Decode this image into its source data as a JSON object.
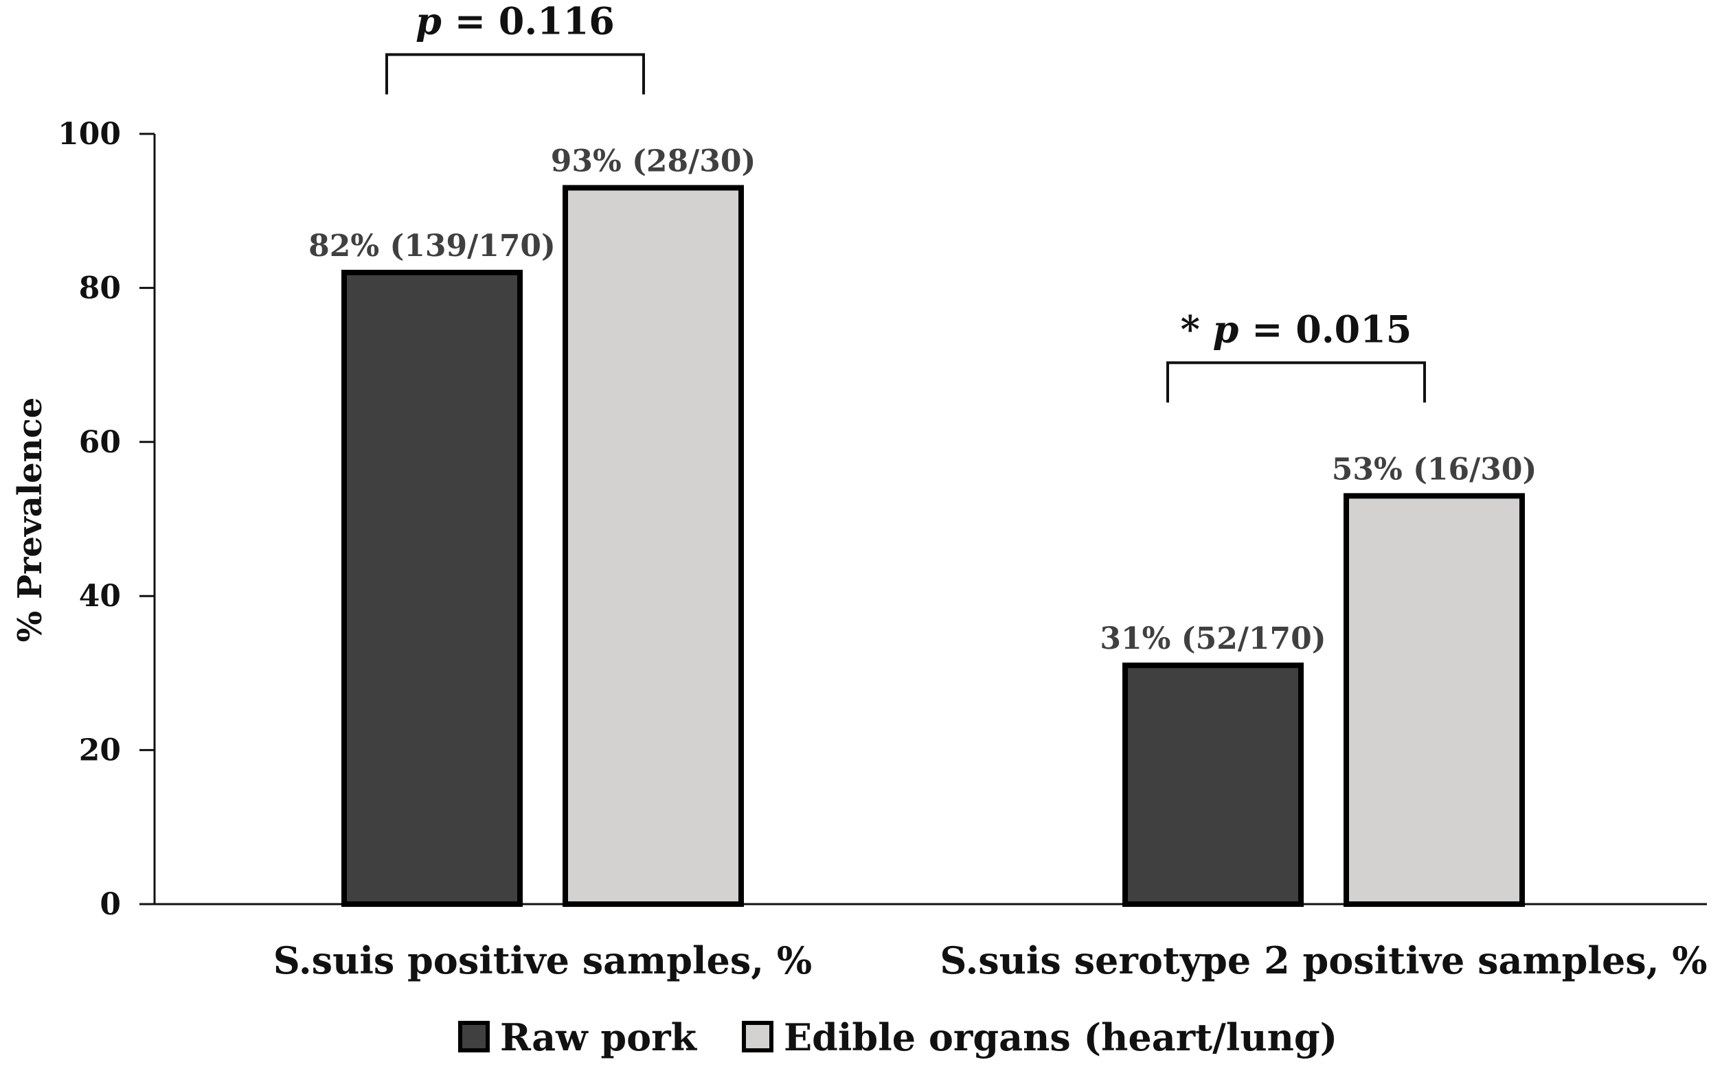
{
  "chart_data": {
    "type": "bar",
    "title": "",
    "xlabel": "",
    "ylabel": "% Prevalence",
    "ylim": [
      0,
      100
    ],
    "yticks": [
      0,
      20,
      40,
      60,
      80,
      100
    ],
    "grid": false,
    "legend_position": "bottom",
    "categories": [
      "S.suis positive samples, %",
      "S.suis serotype 2 positive samples, %"
    ],
    "series": [
      {
        "name": "Raw pork",
        "color": "#404040",
        "values": [
          82,
          31
        ],
        "labels": [
          "82% (139/170)",
          "31% (52/170)"
        ]
      },
      {
        "name": "Edible organs (heart/lung)",
        "color": "#d4d1d1",
        "values": [
          93,
          53
        ],
        "labels": [
          "93% (28/30)",
          "53% (16/30)"
        ]
      }
    ],
    "annotations": [
      {
        "category_index": 0,
        "star": "",
        "p_symbol": "p",
        "p_text": " = 0.116"
      },
      {
        "category_index": 1,
        "star": "* ",
        "p_symbol": "p",
        "p_text": " = 0.015"
      }
    ]
  }
}
